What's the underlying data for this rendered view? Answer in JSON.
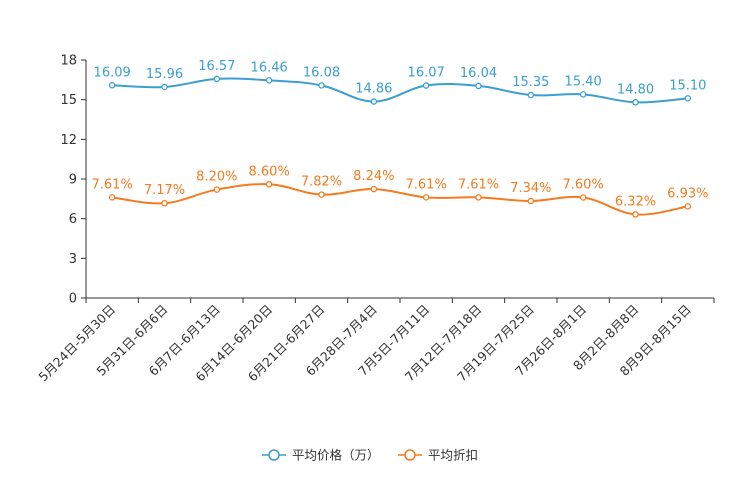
{
  "chart_data": {
    "type": "line",
    "title": "",
    "xlabel": "",
    "ylabel": "",
    "ylim": [
      0,
      18
    ],
    "yticks": [
      0,
      3,
      6,
      9,
      12,
      15,
      18
    ],
    "categories": [
      "5月24日-5月30日",
      "5月31日-6月6日",
      "6月7日-6月13日",
      "6月14日-6月20日",
      "6月21日-6月27日",
      "6月28日-7月4日",
      "7月5日-7月11日",
      "7月12日-7月18日",
      "7月19日-7月25日",
      "7月26日-8月1日",
      "8月2日-8月8日",
      "8月9日-8月15日"
    ],
    "series": [
      {
        "name": "平均价格（万）",
        "color": "#3a9fd0",
        "values": [
          16.09,
          15.96,
          16.57,
          16.46,
          16.08,
          14.86,
          16.07,
          16.04,
          15.35,
          15.4,
          14.8,
          15.1
        ],
        "labels": [
          "16.09",
          "15.96",
          "16.57",
          "16.46",
          "16.08",
          "14.86",
          "16.07",
          "16.04",
          "15.35",
          "15.40",
          "14.80",
          "15.10"
        ]
      },
      {
        "name": "平均折扣",
        "color": "#f47b20",
        "values": [
          7.61,
          7.17,
          8.2,
          8.6,
          7.82,
          8.24,
          7.61,
          7.61,
          7.34,
          7.6,
          6.32,
          6.93
        ],
        "labels": [
          "7.61%",
          "7.17%",
          "8.20%",
          "8.60%",
          "7.82%",
          "8.24%",
          "7.61%",
          "7.61%",
          "7.34%",
          "7.60%",
          "6.32%",
          "6.93%"
        ]
      }
    ],
    "legend_position": "bottom-center",
    "grid": false
  }
}
